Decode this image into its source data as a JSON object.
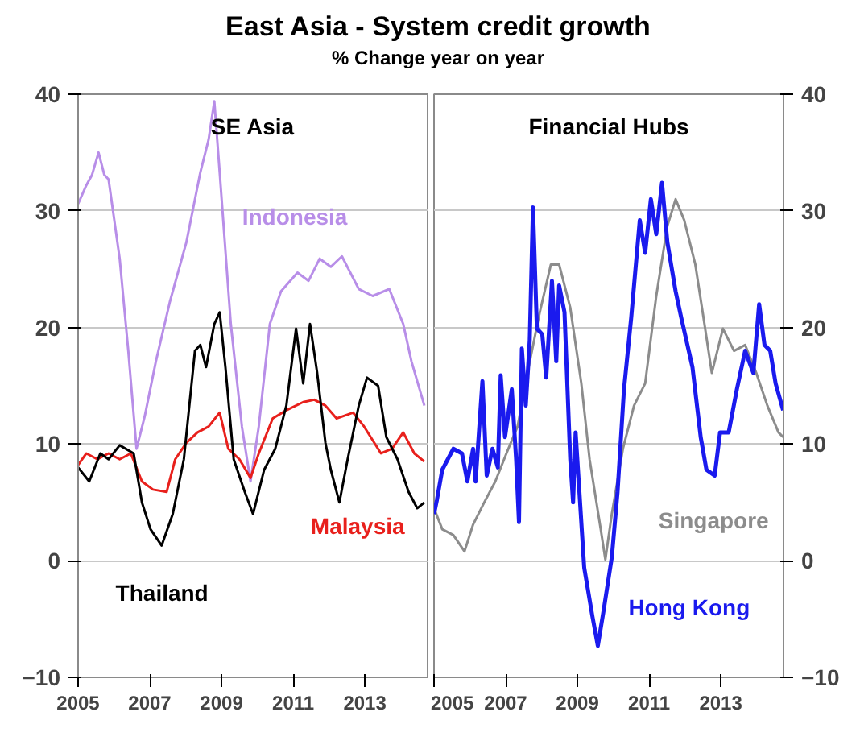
{
  "chart_data": [
    {
      "type": "line",
      "title": "East Asia - System credit growth",
      "subtitle": "% Change year on year",
      "annotations": [
        "SE Asia"
      ],
      "xlim": [
        2005,
        2014.75
      ],
      "xticks": [
        2005,
        2007,
        2009,
        2011,
        2013
      ],
      "ylim": [
        -10,
        40
      ],
      "yticks": [
        -10,
        0,
        10,
        20,
        30,
        40
      ],
      "grid": "y",
      "series": [
        {
          "name": "Indonesia",
          "color": "#b88ee8",
          "x": [
            2005.0,
            2005.23,
            2005.39,
            2005.57,
            2005.73,
            2005.85,
            2006.16,
            2006.4,
            2006.63,
            2006.86,
            2007.17,
            2007.56,
            2008.02,
            2008.41,
            2008.64,
            2008.8,
            2008.95,
            2009.26,
            2009.57,
            2009.81,
            2010.04,
            2010.35,
            2010.66,
            2011.12,
            2011.43,
            2011.74,
            2012.05,
            2012.36,
            2012.83,
            2013.22,
            2013.68,
            2014.07,
            2014.3,
            2014.66
          ],
          "values": [
            30.6,
            32.2,
            33.1,
            35,
            33.1,
            32.7,
            25.9,
            18,
            9.6,
            12.4,
            17.1,
            22.2,
            27.3,
            33.3,
            36.1,
            39.4,
            33.3,
            20.3,
            11.5,
            6.8,
            11.5,
            20.3,
            23.1,
            24.7,
            24,
            25.9,
            25.2,
            26.1,
            23.3,
            22.7,
            23.3,
            20.3,
            17.1,
            13.3
          ]
        },
        {
          "name": "Malaysia",
          "color": "#e8201c",
          "x": [
            2005.0,
            2005.23,
            2005.54,
            2005.85,
            2006.16,
            2006.47,
            2006.78,
            2007.09,
            2007.47,
            2007.71,
            2008.02,
            2008.33,
            2008.64,
            2008.95,
            2009.19,
            2009.5,
            2009.81,
            2010.04,
            2010.43,
            2010.81,
            2011.28,
            2011.59,
            2011.9,
            2012.21,
            2012.67,
            2012.98,
            2013.45,
            2013.76,
            2014.07,
            2014.38,
            2014.66
          ],
          "values": [
            8.2,
            9.2,
            8.7,
            9.2,
            8.7,
            9.2,
            6.8,
            6.1,
            5.9,
            8.7,
            10.1,
            11,
            11.5,
            12.7,
            9.6,
            8.7,
            7.1,
            9.2,
            12.2,
            12.9,
            13.6,
            13.8,
            13.3,
            12.2,
            12.7,
            11.5,
            9.2,
            9.6,
            11,
            9.2,
            8.5
          ]
        },
        {
          "name": "Thailand",
          "color": "#000000",
          "x": [
            2005.0,
            2005.31,
            2005.62,
            2005.85,
            2006.16,
            2006.55,
            2006.78,
            2007.02,
            2007.33,
            2007.64,
            2007.95,
            2008.26,
            2008.41,
            2008.57,
            2008.8,
            2008.95,
            2009.11,
            2009.34,
            2009.65,
            2009.88,
            2010.19,
            2010.5,
            2010.81,
            2011.08,
            2011.28,
            2011.47,
            2011.67,
            2011.9,
            2012.05,
            2012.29,
            2012.52,
            2012.83,
            2013.06,
            2013.37,
            2013.6,
            2013.91,
            2014.22,
            2014.46,
            2014.66
          ],
          "values": [
            8,
            6.8,
            9.2,
            8.7,
            9.9,
            9.2,
            5,
            2.7,
            1.3,
            4,
            8.7,
            18,
            18.5,
            16.6,
            20.3,
            21.3,
            16.6,
            8.7,
            5.9,
            4,
            7.8,
            9.6,
            13.3,
            19.9,
            15.2,
            20.3,
            16.1,
            10.1,
            7.8,
            5,
            8.7,
            13.3,
            15.7,
            15,
            10.6,
            8.7,
            5.9,
            4.5,
            5
          ]
        }
      ]
    },
    {
      "type": "line",
      "annotations": [
        "Financial Hubs"
      ],
      "xlim": [
        2005,
        2014.75
      ],
      "xticks": [
        2005,
        2007,
        2009,
        2011,
        2013
      ],
      "ylim": [
        -10,
        40
      ],
      "yticks": [
        -10,
        0,
        10,
        20,
        30,
        40
      ],
      "grid": "y",
      "series": [
        {
          "name": "Singapore",
          "color": "#8c8c8c",
          "x": [
            2005.0,
            2005.23,
            2005.54,
            2005.85,
            2006.09,
            2006.4,
            2006.71,
            2007.02,
            2007.33,
            2007.64,
            2007.95,
            2008.26,
            2008.49,
            2008.8,
            2009.11,
            2009.34,
            2009.65,
            2009.78,
            2009.96,
            2010.27,
            2010.58,
            2010.89,
            2011.2,
            2011.51,
            2011.74,
            2011.98,
            2012.29,
            2012.52,
            2012.75,
            2013.06,
            2013.37,
            2013.68,
            2013.99,
            2014.3,
            2014.61,
            2014.74
          ],
          "values": [
            4.5,
            2.7,
            2.2,
            0.8,
            3.1,
            5,
            6.8,
            9.2,
            11.5,
            16.6,
            21.3,
            25.4,
            25.4,
            21.7,
            15.2,
            8.7,
            2.7,
            0.1,
            4,
            9.6,
            13.3,
            15.2,
            22.7,
            28.7,
            31,
            29.2,
            25.4,
            20.8,
            16.1,
            19.9,
            18,
            18.5,
            16.1,
            13.3,
            11,
            10.6
          ]
        },
        {
          "name": "Hong Kong",
          "color": "#1a1aee",
          "x": [
            2005.0,
            2005.08,
            2005.23,
            2005.54,
            2005.78,
            2005.93,
            2006.09,
            2006.16,
            2006.35,
            2006.47,
            2006.63,
            2006.78,
            2006.86,
            2006.98,
            2007.17,
            2007.29,
            2007.37,
            2007.45,
            2007.56,
            2007.67,
            2007.76,
            2007.87,
            2008.02,
            2008.13,
            2008.29,
            2008.41,
            2008.49,
            2008.64,
            2008.8,
            2008.88,
            2008.95,
            2009.19,
            2009.42,
            2009.57,
            2009.73,
            2009.96,
            2010.12,
            2010.3,
            2010.5,
            2010.74,
            2010.89,
            2011.05,
            2011.2,
            2011.36,
            2011.51,
            2011.74,
            2011.9,
            2012.21,
            2012.44,
            2012.6,
            2012.83,
            2012.98,
            2013.22,
            2013.45,
            2013.68,
            2013.91,
            2014.07,
            2014.22,
            2014.38,
            2014.53,
            2014.74
          ],
          "values": [
            4,
            5.2,
            7.8,
            9.6,
            9.2,
            6.8,
            9.6,
            6.8,
            15.4,
            7.3,
            9.6,
            8,
            15.9,
            10.6,
            14.7,
            8.7,
            3.3,
            18.2,
            13.3,
            18.9,
            30.3,
            19.9,
            19.4,
            15.7,
            24,
            17.1,
            23.6,
            21.3,
            8.7,
            5,
            11,
            -0.6,
            -4.8,
            -7.3,
            -4.3,
            0.3,
            5.9,
            14.7,
            20.8,
            29.2,
            26.4,
            31,
            28,
            32.4,
            27.3,
            23.1,
            20.8,
            16.6,
            10.6,
            7.8,
            7.3,
            11,
            11,
            14.7,
            18,
            16.1,
            22,
            18.5,
            18,
            15.2,
            12.9
          ]
        }
      ]
    }
  ]
}
